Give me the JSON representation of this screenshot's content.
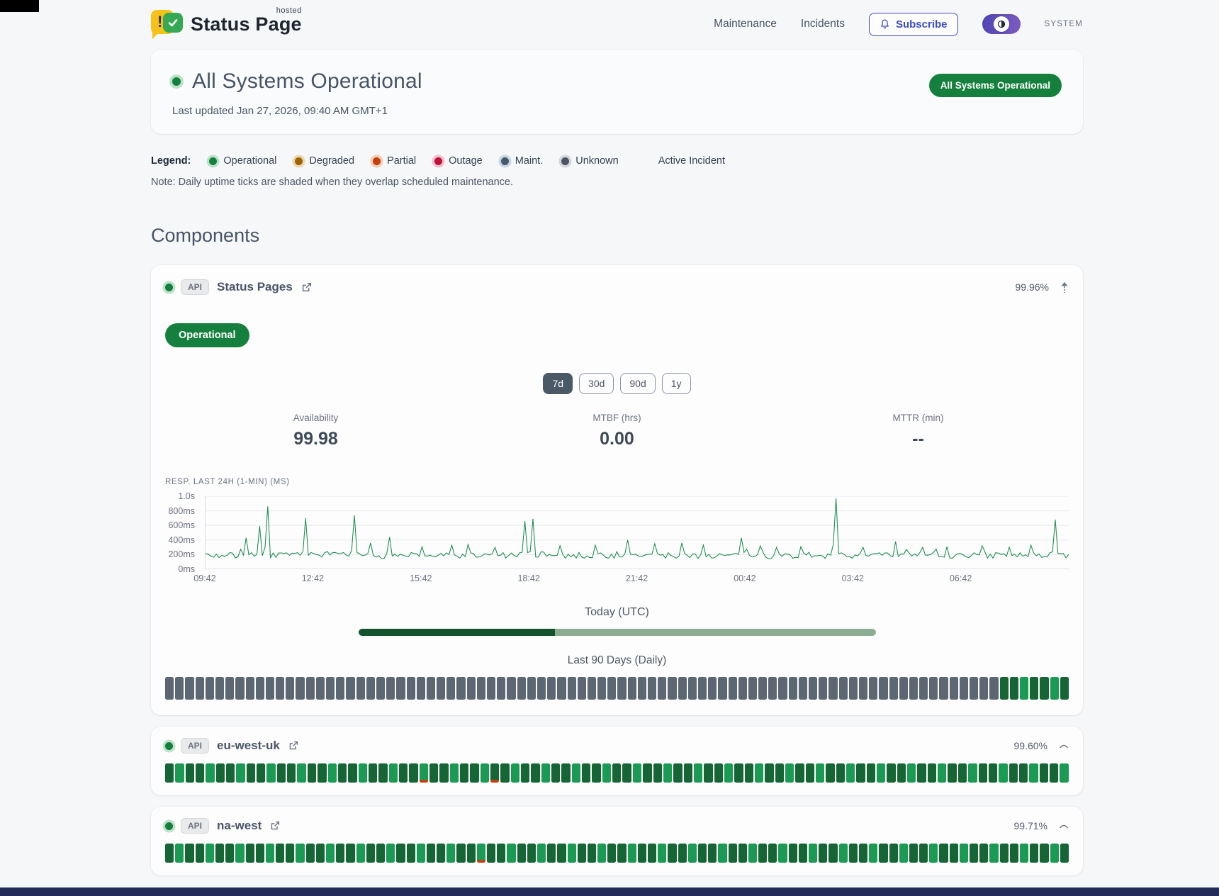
{
  "header": {
    "brand": {
      "title": "Status Page",
      "superscript": "hosted"
    },
    "nav_items": [
      "Maintenance",
      "Incidents"
    ],
    "subscribe": {
      "label": "Subscribe",
      "icon": "bell-icon"
    },
    "theme_toggle": {
      "label": "SYSTEM",
      "icon": "contrast-icon"
    }
  },
  "hero": {
    "title": "All Systems Operational",
    "last_updated": "Last updated Jan 27, 2026, 09:40 AM GMT+1",
    "badge": "All Systems Operational",
    "badge_color": "#15803d",
    "dot_color": "#15803d"
  },
  "legend": {
    "label": "Legend:",
    "items": [
      {
        "label": "Operational",
        "color": "#15803d",
        "ring": "#bde2ca"
      },
      {
        "label": "Degraded",
        "color": "#a16207",
        "ring": "#ead9ae"
      },
      {
        "label": "Partial",
        "color": "#c2410c",
        "ring": "#f3cdb4"
      },
      {
        "label": "Outage",
        "color": "#be123c",
        "ring": "#f2bfcc"
      },
      {
        "label": "Maint.",
        "color": "#47596b",
        "ring": "#c6d7e4"
      },
      {
        "label": "Unknown",
        "color": "#4b5563",
        "ring": "#d3d6db"
      }
    ],
    "active_incident_label": "Active Incident",
    "note": "Note: Daily uptime ticks are shaded when they overlap scheduled maintenance."
  },
  "components_heading": "Components",
  "component_main": {
    "tag": "API",
    "name": "Status Pages",
    "uptime": "99.96%",
    "status_badge": "Operational",
    "ranges": [
      "7d",
      "30d",
      "90d",
      "1y"
    ],
    "active_range": "7d",
    "stats": [
      {
        "label": "Availability",
        "value": "99.98"
      },
      {
        "label": "MTBF (hrs)",
        "value": "0.00"
      },
      {
        "label": "MTTR (min)",
        "value": "--"
      }
    ],
    "today_label": "Today (UTC)",
    "today_progress": {
      "fraction": 0.38,
      "dark_color": "#14532d",
      "light_color": "#8cad92"
    },
    "history_label": "Last 90 Days (Daily)",
    "history_ticks": "nnnnnnnnnnnnnnnnnnnnnnnnnnnnnnnnnnnnnnnnnnnnnnnnnnnnnnnnnnnnnnnnnnnnnnnnnnnnnnnnnnnooooooo"
  },
  "component_rows": [
    {
      "tag": "API",
      "name": "eu-west-uk",
      "uptime": "99.60%",
      "ticks": "oooooooooooooooooooooooooposssoooop-placeholder"
    },
    {
      "tag": "API",
      "name": "na-west",
      "uptime": "99.71%",
      "ticks": "placeholder"
    }
  ],
  "row_ticks": {
    "eu-west-uk": "ooooooooooooooooooooooooopoooooopoooooooooooooooooooooooooooooooooooooooooooooooooooooooo",
    "na-west": "ooooooooooooooooooooooooooooooopoooooooooooooooooooooooooooooooooooooooooooooooooooooooooo"
  },
  "tick_colors": {
    "ok_a": "#166534",
    "ok_b": "#1a9a52",
    "nodata": "#5d6673",
    "partial_accent": "#c2410c"
  },
  "chart_data": {
    "type": "line",
    "title": "RESP. LAST 24H (1-MIN) (MS)",
    "line_color": "#1c8c4e",
    "x_ticks": [
      "09:42",
      "12:42",
      "15:42",
      "18:42",
      "21:42",
      "00:42",
      "03:42",
      "06:42"
    ],
    "y_ticks": [
      "1.0s",
      "800ms",
      "600ms",
      "400ms",
      "200ms",
      "0ms"
    ],
    "ylim_ms": [
      0,
      1000
    ],
    "baseline_ms": [
      145,
      230
    ],
    "spikes": [
      [
        0.047,
        430
      ],
      [
        0.062,
        590
      ],
      [
        0.072,
        860
      ],
      [
        0.117,
        700
      ],
      [
        0.172,
        740
      ],
      [
        0.19,
        360
      ],
      [
        0.214,
        440
      ],
      [
        0.25,
        310
      ],
      [
        0.285,
        330
      ],
      [
        0.305,
        340
      ],
      [
        0.335,
        300
      ],
      [
        0.37,
        660
      ],
      [
        0.379,
        690
      ],
      [
        0.41,
        320
      ],
      [
        0.45,
        330
      ],
      [
        0.49,
        400
      ],
      [
        0.52,
        350
      ],
      [
        0.553,
        360
      ],
      [
        0.576,
        330
      ],
      [
        0.62,
        430
      ],
      [
        0.643,
        320
      ],
      [
        0.663,
        300
      ],
      [
        0.69,
        310
      ],
      [
        0.73,
        970
      ],
      [
        0.762,
        300
      ],
      [
        0.8,
        380
      ],
      [
        0.832,
        300
      ],
      [
        0.86,
        310
      ],
      [
        0.9,
        320
      ],
      [
        0.932,
        300
      ],
      [
        0.956,
        330
      ],
      [
        0.985,
        680
      ]
    ]
  }
}
